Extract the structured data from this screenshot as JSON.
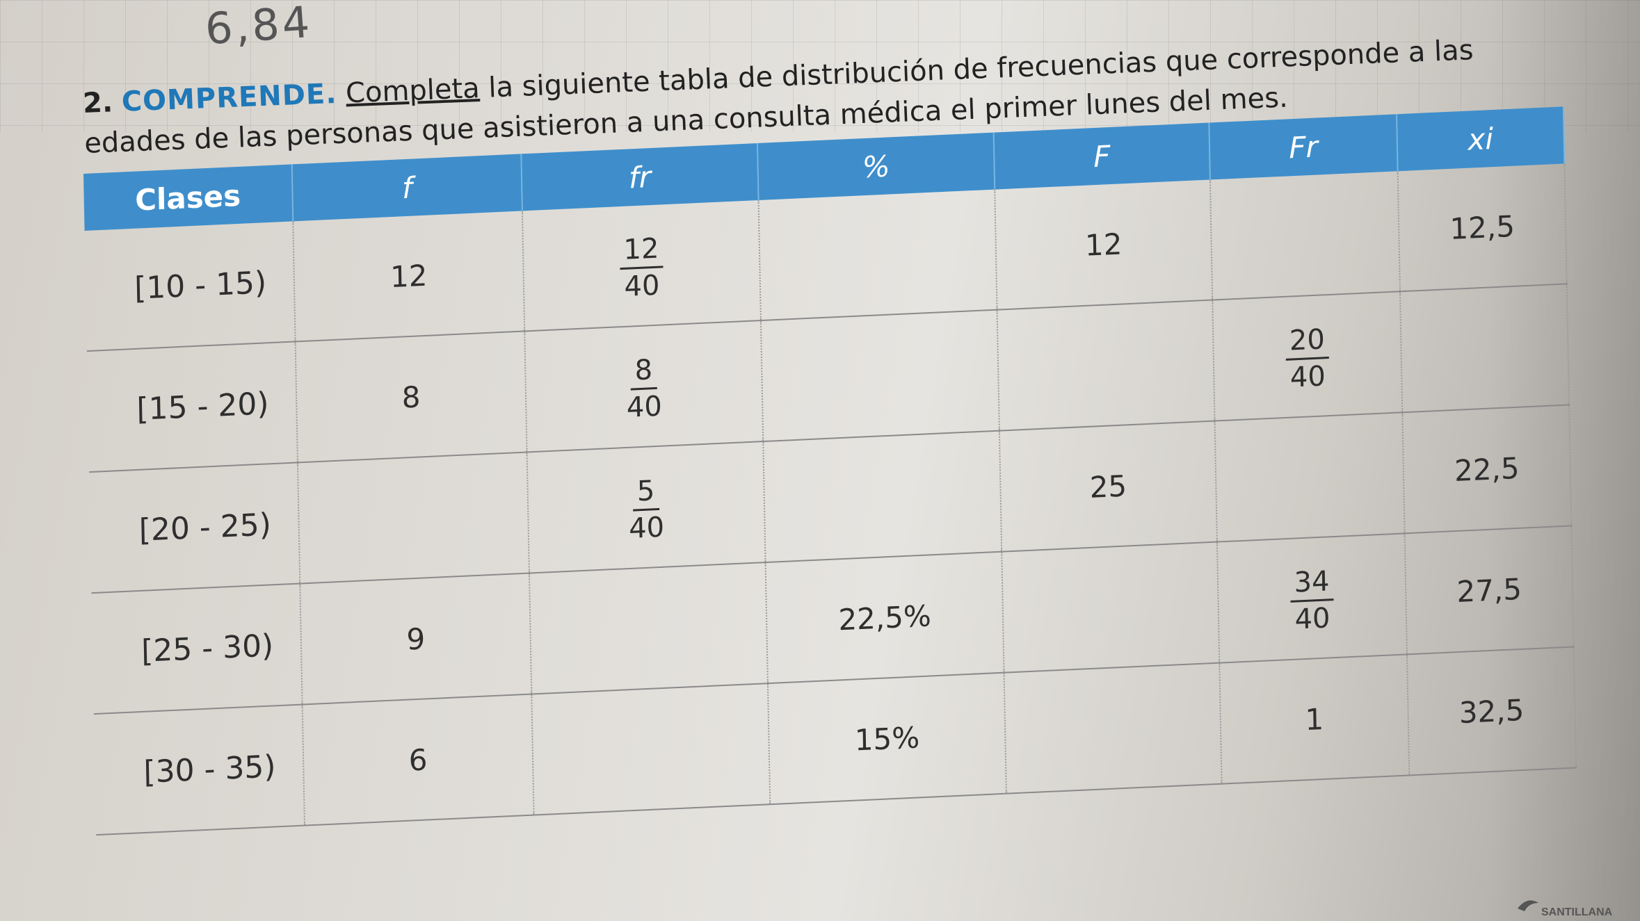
{
  "handnote": "6,84",
  "question": {
    "number": "2.",
    "tag": "COMPRENDE.",
    "underlined": "Completa",
    "text": "la siguiente tabla de distribución de frecuencias que corresponde a las edades de las personas que asistieron a una consulta médica el primer lunes del mes."
  },
  "table": {
    "headers": {
      "clases": "Clases",
      "f": "f",
      "fr": "fr",
      "pct": "%",
      "F": "F",
      "Fr": "Fr",
      "xi": "xi"
    },
    "rows": [
      {
        "clase": "[10 - 15)",
        "f": "12",
        "fr_num": "12",
        "fr_den": "40",
        "pct": "",
        "F": "12",
        "Fr_num": "",
        "Fr_den": "",
        "Fr": "",
        "xi": "12,5"
      },
      {
        "clase": "[15 - 20)",
        "f": "8",
        "fr_num": "8",
        "fr_den": "40",
        "pct": "",
        "F": "",
        "Fr_num": "20",
        "Fr_den": "40",
        "Fr": "",
        "xi": ""
      },
      {
        "clase": "[20 - 25)",
        "f": "",
        "fr_num": "5",
        "fr_den": "40",
        "pct": "",
        "F": "25",
        "Fr_num": "",
        "Fr_den": "",
        "Fr": "",
        "xi": "22,5"
      },
      {
        "clase": "[25 - 30)",
        "f": "9",
        "fr_num": "",
        "fr_den": "",
        "pct": "22,5%",
        "F": "",
        "Fr_num": "34",
        "Fr_den": "40",
        "Fr": "",
        "xi": "27,5"
      },
      {
        "clase": "[30 - 35)",
        "f": "6",
        "fr_num": "",
        "fr_den": "",
        "pct": "15%",
        "F": "",
        "Fr_num": "",
        "Fr_den": "",
        "Fr": "1",
        "xi": "32,5"
      }
    ]
  },
  "logo_text": "SANTILLANA",
  "colors": {
    "header_blue": "#3f8ecb",
    "tag_blue": "#1f78b8"
  }
}
